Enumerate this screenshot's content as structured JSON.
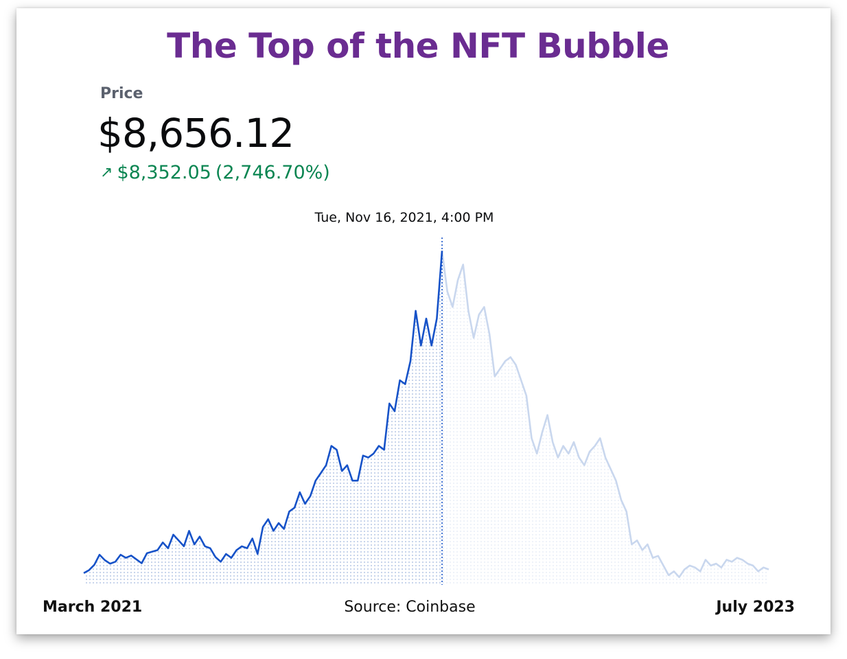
{
  "title": "The Top of the NFT Bubble",
  "price": {
    "label": "Price",
    "value": "$8,656.12",
    "change_arrow": "↗",
    "change": "$8,352.05",
    "change_pct": "(2,746.70%)"
  },
  "tooltip_date": "Tue, Nov 16, 2021, 4:00 PM",
  "footer": {
    "start_label": "March 2021",
    "source": "Source: Coinbase",
    "end_label": "July 2023"
  },
  "colors": {
    "title": "#6a2c91",
    "active_line": "#1652c8",
    "inactive_line": "#c9d7ee",
    "positive": "#098551"
  },
  "chart_data": {
    "type": "line",
    "title": "The Top of the NFT Bubble",
    "x_start": "March 2021",
    "x_end": "July 2023",
    "highlight": {
      "date": "Tue, Nov 16, 2021, 4:00 PM",
      "value": 8656.12
    },
    "series": [
      {
        "values": [
          304,
          380,
          520,
          780,
          640,
          550,
          600,
          780,
          700,
          760,
          660,
          560,
          820,
          860,
          900,
          1100,
          950,
          1300,
          1150,
          1000,
          1400,
          1050,
          1250,
          1000,
          950,
          720,
          600,
          800,
          700,
          900,
          1000,
          950,
          1200,
          800,
          1500,
          1700,
          1400,
          1600,
          1450,
          1900,
          2000,
          2400,
          2100,
          2300,
          2700,
          2900,
          3100,
          3600,
          3500,
          2950,
          3100,
          2700,
          2700,
          3350,
          3300,
          3400,
          3600,
          3500,
          4700,
          4500,
          5300,
          5200,
          5800,
          7100,
          6200,
          6900,
          6200,
          6900,
          8656.12,
          7600,
          7200,
          7900,
          8300,
          7100,
          6400,
          7000,
          7200,
          6500,
          5400,
          5600,
          5800,
          5900,
          5700,
          5300,
          4900,
          3800,
          3400,
          3950,
          4400,
          3700,
          3300,
          3600,
          3400,
          3700,
          3300,
          3100,
          3450,
          3600,
          3800,
          3300,
          3000,
          2700,
          2200,
          1900,
          1050,
          1150,
          900,
          1050,
          700,
          750,
          500,
          250,
          350,
          200,
          400,
          500,
          450,
          350,
          650,
          500,
          550,
          450,
          650,
          600,
          700,
          650,
          550,
          500,
          350,
          450,
          400
        ]
      }
    ]
  }
}
